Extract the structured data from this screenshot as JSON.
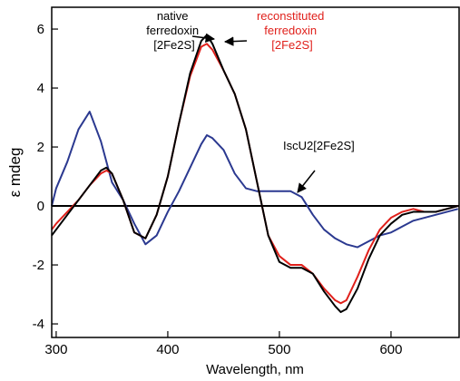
{
  "chart_data": {
    "type": "line",
    "x_label": "Wavelength, nm",
    "y_label": "ε mdeg",
    "xlim": [
      296,
      661
    ],
    "ylim": [
      -4.46,
      6.74
    ],
    "xticks": [
      300,
      400,
      500,
      600
    ],
    "yticks": [
      -4,
      -2,
      0,
      2,
      4,
      6
    ],
    "annotations": [
      {
        "lines": [
          "native",
          "ferredoxin",
          "[2Fe2S]"
        ],
        "color": "#000000"
      },
      {
        "lines": [
          "reconstituted",
          "ferredoxin",
          "[2Fe2S]"
        ],
        "color": "#e0201b"
      },
      {
        "lines": [
          "IscU2[2Fe2S]"
        ],
        "color": "#2b3990"
      }
    ],
    "x": [
      296,
      300,
      310,
      320,
      330,
      340,
      345,
      350,
      360,
      370,
      380,
      390,
      400,
      410,
      420,
      430,
      435,
      440,
      450,
      460,
      470,
      480,
      490,
      500,
      510,
      520,
      530,
      540,
      550,
      555,
      560,
      570,
      580,
      590,
      600,
      610,
      620,
      630,
      640,
      650,
      660
    ],
    "series": [
      {
        "name": "IscU2[2Fe2S]",
        "color": "#2b3990",
        "values": [
          0.0,
          0.6,
          1.5,
          2.6,
          3.2,
          2.2,
          1.5,
          0.8,
          0.2,
          -0.6,
          -1.3,
          -1.0,
          -0.2,
          0.5,
          1.3,
          2.1,
          2.4,
          2.3,
          1.9,
          1.1,
          0.6,
          0.5,
          0.5,
          0.5,
          0.5,
          0.3,
          -0.3,
          -0.8,
          -1.1,
          -1.2,
          -1.3,
          -1.4,
          -1.2,
          -1.0,
          -0.9,
          -0.7,
          -0.5,
          -0.4,
          -0.3,
          -0.2,
          -0.1
        ]
      },
      {
        "name": "reconstituted ferredoxin [2Fe2S]",
        "color": "#e0201b",
        "values": [
          -0.8,
          -0.6,
          -0.2,
          0.2,
          0.7,
          1.1,
          1.2,
          1.1,
          0.2,
          -0.9,
          -1.1,
          -0.3,
          1.0,
          2.8,
          4.4,
          5.4,
          5.5,
          5.3,
          4.6,
          3.8,
          2.6,
          0.8,
          -1.0,
          -1.7,
          -2.0,
          -2.0,
          -2.3,
          -2.8,
          -3.2,
          -3.3,
          -3.2,
          -2.4,
          -1.5,
          -0.8,
          -0.4,
          -0.2,
          -0.1,
          -0.2,
          -0.2,
          -0.1,
          0.0
        ]
      },
      {
        "name": "native ferredoxin [2Fe2S]",
        "color": "#000000",
        "values": [
          -1.0,
          -0.8,
          -0.3,
          0.2,
          0.7,
          1.2,
          1.3,
          1.1,
          0.2,
          -0.9,
          -1.1,
          -0.3,
          1.0,
          2.8,
          4.5,
          5.6,
          5.8,
          5.5,
          4.6,
          3.8,
          2.6,
          0.8,
          -1.0,
          -1.9,
          -2.1,
          -2.1,
          -2.3,
          -2.9,
          -3.4,
          -3.6,
          -3.5,
          -2.8,
          -1.8,
          -1.0,
          -0.6,
          -0.3,
          -0.2,
          -0.2,
          -0.2,
          -0.1,
          0.0
        ]
      }
    ]
  }
}
